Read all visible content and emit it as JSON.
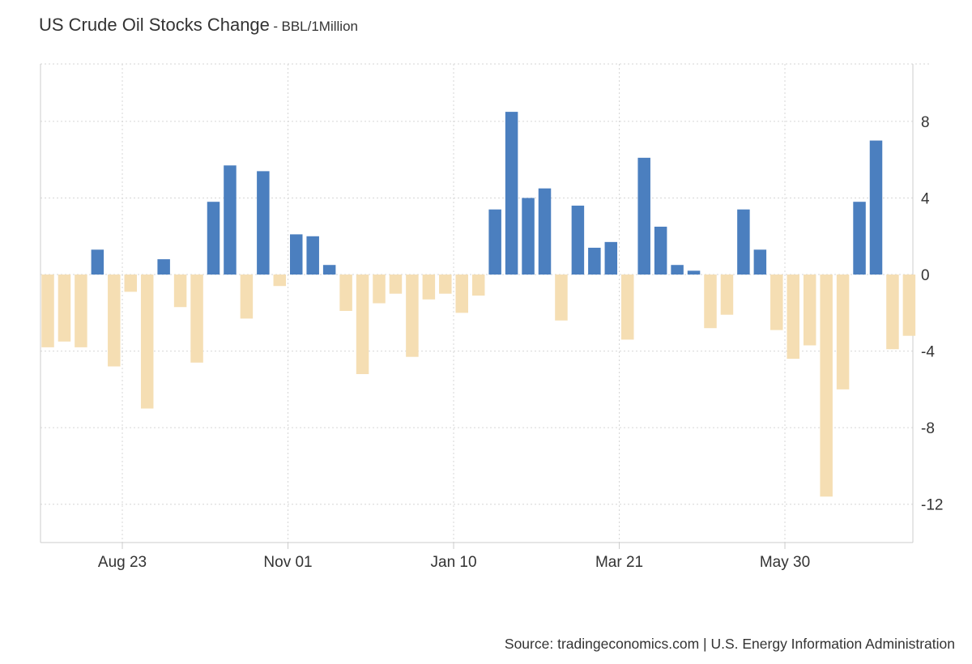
{
  "chart_data": {
    "type": "bar",
    "title": "US Crude Oil Stocks Change",
    "title_separator": "-",
    "unit": "BBL/1Million",
    "source_prefix": "Source:",
    "source_site": "tradingeconomics.com",
    "source_divider": "|",
    "source_agency": "U.S. Energy Information Administration",
    "ylim": [
      -14,
      11
    ],
    "yticks": [
      -12,
      -8,
      -4,
      0,
      4,
      8
    ],
    "xticks": [
      {
        "label": "Aug 23",
        "after_index": 4
      },
      {
        "label": "Nov 01",
        "after_index": 14
      },
      {
        "label": "Jan 10",
        "after_index": 24
      },
      {
        "label": "Mar 21",
        "after_index": 34
      },
      {
        "label": "May 30",
        "after_index": 44
      }
    ],
    "values": [
      -3.8,
      -3.5,
      -3.8,
      1.3,
      -4.8,
      -0.9,
      -7.0,
      0.8,
      -1.7,
      -4.6,
      3.8,
      5.7,
      -2.3,
      5.4,
      -0.6,
      2.1,
      2.0,
      0.5,
      -1.9,
      -5.2,
      -1.5,
      -1.0,
      -4.3,
      -1.3,
      -1.0,
      -2.0,
      -1.1,
      3.4,
      8.5,
      4.0,
      4.5,
      -2.4,
      3.6,
      1.4,
      1.7,
      -3.4,
      6.1,
      2.5,
      0.5,
      0.2,
      -2.8,
      -2.1,
      3.4,
      1.3,
      -2.9,
      -4.4,
      -3.7,
      -11.6,
      -6.0,
      3.8,
      7.0,
      -3.9,
      -3.2
    ],
    "colors": {
      "positive": "#4b7fbf",
      "negative": "#f5deb3",
      "grid": "#d6d6d6",
      "axis": "#cccccc",
      "tick_text": "#333333"
    }
  }
}
